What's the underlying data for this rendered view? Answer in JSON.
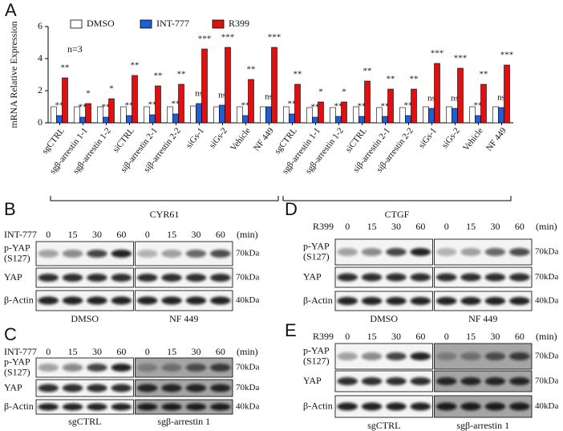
{
  "chart_data": {
    "type": "bar",
    "panel_letter": "A",
    "ylabel": "mRNA Relative Expression",
    "note": "n=3",
    "ylim": [
      0,
      6
    ],
    "yticks": [
      0,
      2,
      4,
      6
    ],
    "categories": [
      "sgCTRL",
      "sgβ-arrestin 1-1",
      "sgβ-arrestin 1-2",
      "siCTRL",
      "siβ-arrestin 2-1",
      "siβ-arrestin 2-2",
      "siGs-1",
      "siGs-2",
      "Vehicle",
      "NF 449",
      "sgCTRL",
      "sgβ-arrestin 1-1",
      "sgβ-arrestin 1-2",
      "siCTRL",
      "siβ-arrestin 2-1",
      "siβ-arrestin 2-2",
      "siGs-1",
      "siGs-2",
      "Vehicle",
      "NF 449"
    ],
    "groups": [
      "CYR61",
      "CTGF"
    ],
    "series": [
      {
        "name": "DMSO",
        "color": "#ffffff",
        "values": [
          1.0,
          1.0,
          1.0,
          1.0,
          1.0,
          1.0,
          1.05,
          1.0,
          1.0,
          1.0,
          1.0,
          0.95,
          0.95,
          1.0,
          0.95,
          0.95,
          1.0,
          1.0,
          1.0,
          1.0
        ]
      },
      {
        "name": "INT-777",
        "color": "#1f5fd6",
        "values": [
          0.45,
          0.35,
          0.35,
          0.45,
          0.5,
          0.55,
          1.2,
          1.1,
          0.45,
          1.0,
          0.55,
          0.35,
          0.4,
          0.4,
          0.4,
          0.45,
          0.9,
          0.9,
          0.45,
          0.95
        ],
        "significance": [
          "**",
          "**",
          "**",
          "**",
          "**",
          "**",
          "ns",
          "ns",
          "**",
          "ns",
          "**",
          "**",
          "**",
          "**",
          "**",
          "**",
          "ns",
          "ns",
          "**",
          "ns"
        ]
      },
      {
        "name": "R399",
        "color": "#e01010",
        "values": [
          2.8,
          1.2,
          1.5,
          2.95,
          2.3,
          2.4,
          4.6,
          4.7,
          2.7,
          4.7,
          2.4,
          1.3,
          1.3,
          2.6,
          2.1,
          2.1,
          3.7,
          3.4,
          2.4,
          3.6
        ],
        "significance": [
          "**",
          "*",
          "*",
          "**",
          "**",
          "**",
          "***",
          "***",
          "**",
          "***",
          "**",
          "*",
          "*",
          "**",
          "**",
          "**",
          "***",
          "***",
          "**",
          "***"
        ]
      }
    ]
  },
  "blots": [
    {
      "letter": "B",
      "treatment": "INT-777",
      "times": [
        0,
        15,
        30,
        60
      ],
      "unit": "(min)",
      "rows": [
        {
          "label": [
            "p-YAP",
            "(S127)"
          ],
          "kda": "70kDa"
        },
        {
          "label": [
            "YAP"
          ],
          "kda": "70kDa"
        },
        {
          "label": [
            "β-Actin"
          ],
          "kda": "40kDa"
        }
      ],
      "conditions": [
        "DMSO",
        "NF 449"
      ]
    },
    {
      "letter": "C",
      "treatment": "INT-777",
      "times": [
        0,
        15,
        30,
        60
      ],
      "unit": "(min)",
      "rows": [
        {
          "label": [
            "p-YAP",
            "(S127)"
          ],
          "kda": "70kDa"
        },
        {
          "label": [
            "YAP"
          ],
          "kda": "70kDa"
        },
        {
          "label": [
            "β-Actin"
          ],
          "kda": "40kDa"
        }
      ],
      "conditions": [
        "sgCTRL",
        "sgβ-arrestin 1"
      ]
    },
    {
      "letter": "D",
      "treatment": "R399",
      "times": [
        0,
        15,
        30,
        60
      ],
      "unit": "(min)",
      "rows": [
        {
          "label": [
            "p-YAP",
            "(S127)"
          ],
          "kda": "70kDa"
        },
        {
          "label": [
            "YAP"
          ],
          "kda": "70kDa"
        },
        {
          "label": [
            "β-Actin"
          ],
          "kda": "40kDa"
        }
      ],
      "conditions": [
        "DMSO",
        "NF 449"
      ]
    },
    {
      "letter": "E",
      "treatment": "R399",
      "times": [
        0,
        15,
        30,
        60
      ],
      "unit": "(min)",
      "rows": [
        {
          "label": [
            "p-YAP",
            "(S127)"
          ],
          "kda": "70kDa"
        },
        {
          "label": [
            "YAP"
          ],
          "kda": "70kDa"
        },
        {
          "label": [
            "β-Actin"
          ],
          "kda": "40kDa"
        }
      ],
      "conditions": [
        "sgCTRL",
        "sgβ-arrestin 1"
      ]
    }
  ]
}
